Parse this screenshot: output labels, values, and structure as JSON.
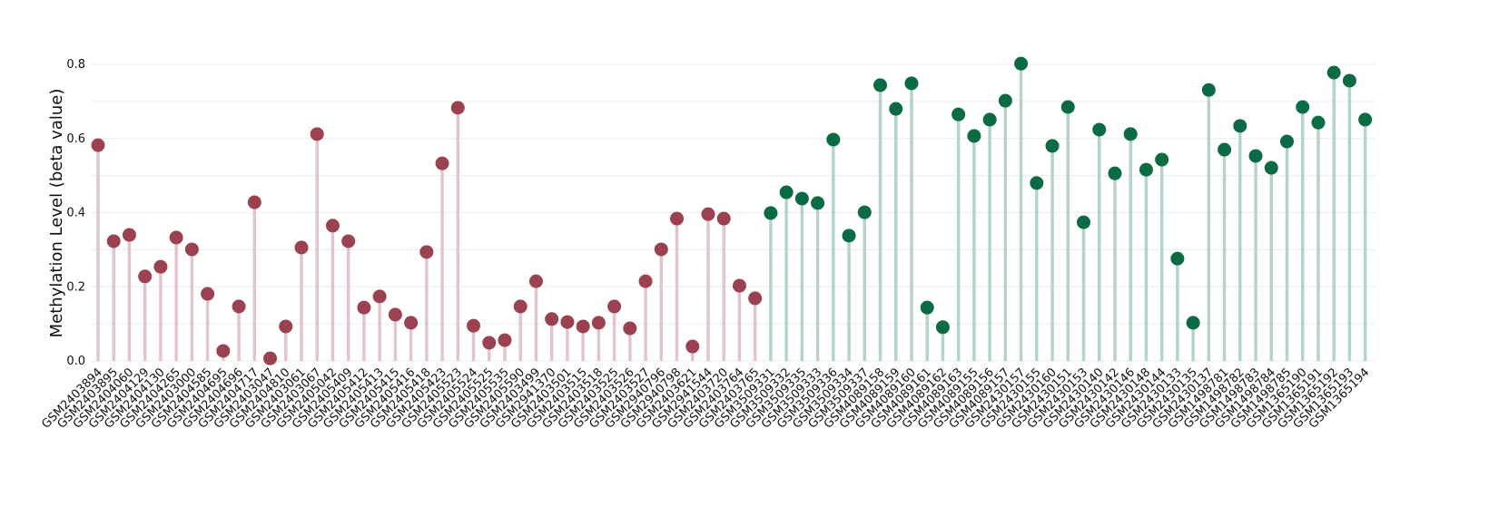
{
  "chart_data": {
    "type": "lollipop",
    "title": "",
    "xlabel": "",
    "ylabel": "Methylation Level (beta value)",
    "ylim": [
      0,
      0.8
    ],
    "yticks": [
      "0.0",
      "0.2",
      "0.4",
      "0.6",
      "0.8"
    ],
    "grid": true,
    "legend": "none",
    "series": [
      {
        "color": "#9b4150",
        "stem_color": "#e2c5cc",
        "categories": [
          "GSM2403894",
          "GSM2403895",
          "GSM2404060",
          "GSM2404129",
          "GSM2404130",
          "GSM2404265",
          "GSM2403000",
          "GSM2404585",
          "GSM2404695",
          "GSM2404696",
          "GSM2404717",
          "GSM2403047",
          "GSM2404810",
          "GSM2403061",
          "GSM2403067",
          "GSM2405042",
          "GSM2405409",
          "GSM2405412",
          "GSM2405413",
          "GSM2405415",
          "GSM2405416",
          "GSM2405418",
          "GSM2405423",
          "GSM2405523",
          "GSM2405524",
          "GSM2405525",
          "GSM2405535",
          "GSM2405590",
          "GSM2403499",
          "GSM2941370",
          "GSM2403501",
          "GSM2403515",
          "GSM2403518",
          "GSM2403525",
          "GSM2403526",
          "GSM2403527",
          "GSM2940796",
          "GSM2940798",
          "GSM2403621",
          "GSM2941544",
          "GSM2403720",
          "GSM2403764",
          "GSM2403765"
        ],
        "values": [
          0.582,
          0.323,
          0.34,
          0.228,
          0.254,
          0.333,
          0.301,
          0.181,
          0.027,
          0.147,
          0.428,
          0.007,
          0.093,
          0.306,
          0.612,
          0.365,
          0.323,
          0.144,
          0.174,
          0.125,
          0.103,
          0.294,
          0.533,
          0.683,
          0.095,
          0.049,
          0.056,
          0.147,
          0.215,
          0.113,
          0.105,
          0.093,
          0.103,
          0.147,
          0.088,
          0.215,
          0.301,
          0.384,
          0.039,
          0.396,
          0.384,
          0.203,
          0.169
        ]
      },
      {
        "color": "#0b6b43",
        "stem_color": "#b3d4c8",
        "categories": [
          "GSM3509331",
          "GSM3509332",
          "GSM3509335",
          "GSM3509333",
          "GSM3509336",
          "GSM3509334",
          "GSM3509337",
          "GSM4089158",
          "GSM4089159",
          "GSM4089160",
          "GSM4089161",
          "GSM4089162",
          "GSM4089163",
          "GSM4089155",
          "GSM4089156",
          "GSM4089157",
          "GSM2430157",
          "GSM2430155",
          "GSM2430160",
          "GSM2430151",
          "GSM2430153",
          "GSM2430140",
          "GSM2430142",
          "GSM2430146",
          "GSM2430148",
          "GSM2430144",
          "GSM2430133",
          "GSM2430135",
          "GSM2430137",
          "GSM1498781",
          "GSM1498782",
          "GSM1498783",
          "GSM1498784",
          "GSM1498785",
          "GSM1365190",
          "GSM1365191",
          "GSM1365192",
          "GSM1365193",
          "GSM1365194"
        ],
        "values": [
          0.399,
          0.455,
          0.438,
          0.426,
          0.597,
          0.338,
          0.401,
          0.744,
          0.68,
          0.749,
          0.144,
          0.091,
          0.665,
          0.607,
          0.651,
          0.702,
          0.802,
          0.48,
          0.58,
          0.685,
          0.374,
          0.624,
          0.506,
          0.612,
          0.516,
          0.543,
          0.276,
          0.103,
          0.731,
          0.57,
          0.634,
          0.553,
          0.521,
          0.592,
          0.685,
          0.643,
          0.778,
          0.756,
          0.651
        ]
      }
    ]
  }
}
